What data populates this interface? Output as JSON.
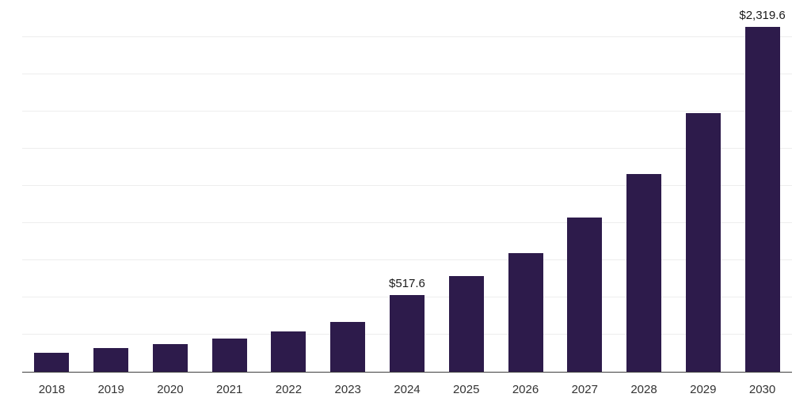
{
  "chart_data": {
    "type": "bar",
    "title": "",
    "xlabel": "",
    "ylabel": "",
    "categories": [
      "2018",
      "2019",
      "2020",
      "2021",
      "2022",
      "2023",
      "2024",
      "2025",
      "2026",
      "2027",
      "2028",
      "2029",
      "2030"
    ],
    "values": [
      128,
      159,
      187,
      223,
      271,
      335,
      517.6,
      645,
      800,
      1035,
      1330,
      1740,
      2319.6
    ],
    "data_labels": [
      "",
      "",
      "",
      "",
      "",
      "",
      "$517.6",
      "",
      "",
      "",
      "",
      "",
      "$2,319.6"
    ],
    "ylim": [
      0,
      2500
    ],
    "gridline_step": 250,
    "grid": true,
    "legend": false,
    "bar_color": "#2d1b4b",
    "grid_color": "#ededed",
    "axis_color": "#3f3f3f",
    "tick_label_color": "#333333",
    "data_label_color": "#1a1a1a"
  }
}
